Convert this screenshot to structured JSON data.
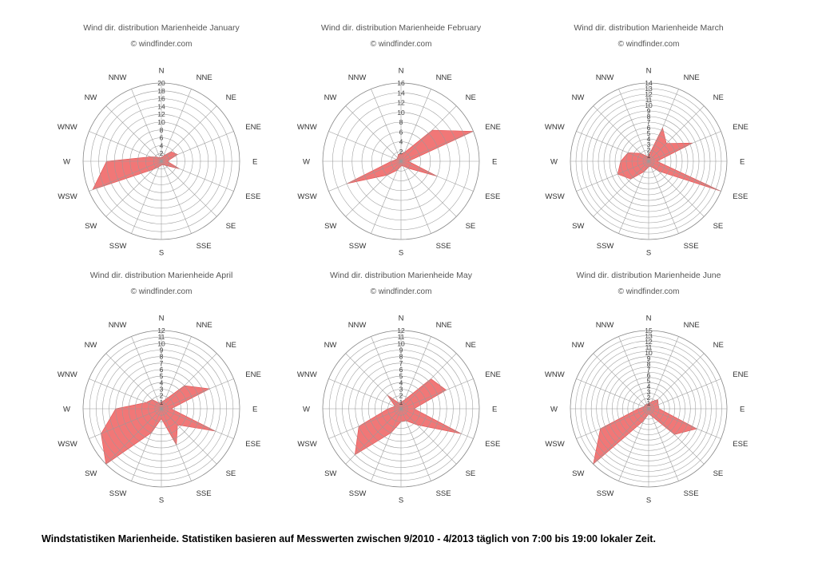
{
  "directions": [
    "N",
    "NNE",
    "NE",
    "ENE",
    "E",
    "ESE",
    "SE",
    "SSE",
    "S",
    "SSW",
    "SW",
    "WSW",
    "W",
    "WNW",
    "NW",
    "NNW"
  ],
  "chart_data": [
    {
      "type": "radar",
      "title": "Wind dir. distribution Marienheide January",
      "subtitle": "© windfinder.com",
      "rmax": 20,
      "tick_step": 2,
      "ticks": [
        "2",
        "4",
        "6",
        "8",
        "10",
        "12",
        "14",
        "16",
        "18",
        "20"
      ],
      "values": [
        1,
        1.5,
        3.5,
        4.5,
        1.5,
        5,
        1.5,
        1,
        1,
        1.5,
        3,
        19,
        14,
        3,
        1.5,
        1
      ],
      "fill": "#f07070"
    },
    {
      "type": "radar",
      "title": "Wind dir. distribution Marienheide February",
      "subtitle": "© windfinder.com",
      "rmax": 16,
      "tick_step": 2,
      "ticks": [
        "2",
        "4",
        "6",
        "8",
        "10",
        "12",
        "14",
        "16"
      ],
      "values": [
        1.5,
        2,
        9,
        16,
        1.5,
        8,
        2,
        1,
        1,
        2,
        4,
        12,
        2,
        1,
        1,
        1.5
      ],
      "fill": "#f07070"
    },
    {
      "type": "radar",
      "title": "Wind dir. distribution Marienheide March",
      "subtitle": "© windfinder.com",
      "rmax": 14,
      "tick_step": 1,
      "ticks": [
        "1",
        "2",
        "3",
        "4",
        "5",
        "6",
        "7",
        "8",
        "9",
        "10",
        "11",
        "12",
        "13",
        "14"
      ],
      "values": [
        1,
        6.5,
        4.5,
        8.5,
        1.5,
        14,
        2.5,
        1,
        1,
        2,
        4.5,
        6,
        5,
        4,
        2,
        1
      ],
      "fill": "#f07070"
    },
    {
      "type": "radar",
      "title": "Wind dir. distribution Marienheide April",
      "subtitle": "© windfinder.com",
      "rmax": 12,
      "tick_step": 1,
      "ticks": [
        "1",
        "2",
        "3",
        "4",
        "5",
        "6",
        "7",
        "8",
        "9",
        "10",
        "11",
        "12"
      ],
      "values": [
        1,
        1.5,
        5,
        8,
        1.5,
        9,
        3.5,
        6,
        1.5,
        4,
        12,
        10,
        7,
        2.5,
        2,
        1
      ],
      "fill": "#f07070"
    },
    {
      "type": "radar",
      "title": "Wind dir. distribution Marienheide May",
      "subtitle": "© windfinder.com",
      "rmax": 12,
      "tick_step": 1,
      "ticks": [
        "1",
        "2",
        "3",
        "4",
        "5",
        "6",
        "7",
        "8",
        "9",
        "10",
        "11",
        "12"
      ],
      "values": [
        1,
        1.5,
        6.5,
        7.5,
        2,
        10,
        3.5,
        2,
        2,
        4,
        10,
        7,
        2,
        1,
        3,
        1
      ],
      "fill": "#f07070"
    },
    {
      "type": "radar",
      "title": "Wind dir. distribution Marienheide June",
      "subtitle": "© windfinder.com",
      "rmax": 15,
      "tick_step": 1,
      "ticks": [
        "1",
        "2",
        "3",
        "4",
        "5",
        "6",
        "7",
        "8",
        "9",
        "10",
        "11",
        "12",
        "13",
        "15"
      ],
      "values": [
        1,
        1.5,
        2.5,
        2,
        2,
        10,
        7,
        1.5,
        1,
        2.5,
        15,
        10,
        2,
        1,
        1,
        1
      ],
      "fill": "#f07070"
    }
  ],
  "caption": "Windstatistiken Marienheide. Statistiken basieren auf Messwerten zwischen 9/2010 - 4/2013 täglich von 7:00 bis 19:00 lokaler Zeit."
}
